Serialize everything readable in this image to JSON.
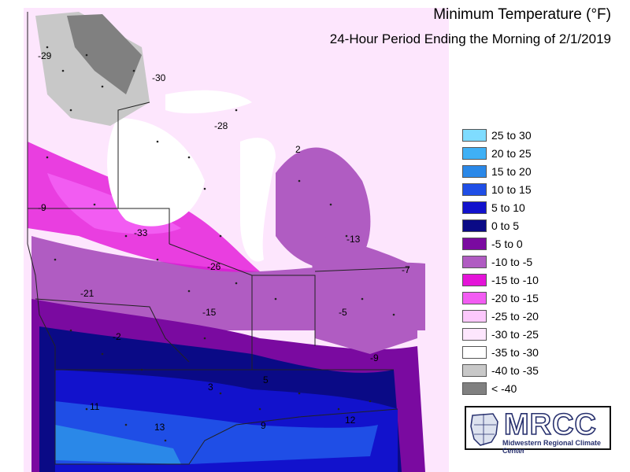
{
  "header": {
    "title": "Minimum Temperature (°F)",
    "subtitle": "24-Hour Period Ending the Morning of 2/1/2019"
  },
  "legend": [
    {
      "label": "25 to 30",
      "color": "#7fdcff"
    },
    {
      "label": "20 to 25",
      "color": "#3fb0f5"
    },
    {
      "label": "15 to 20",
      "color": "#2a88e8"
    },
    {
      "label": "10 to 15",
      "color": "#1f4ee6"
    },
    {
      "label": "5 to 10",
      "color": "#1212cc"
    },
    {
      "label": "0 to 5",
      "color": "#0a0a86"
    },
    {
      "label": "-5 to 0",
      "color": "#7a0aa0"
    },
    {
      "label": "-10 to -5",
      "color": "#b05cc2"
    },
    {
      "label": "-15 to -10",
      "color": "#e414d8"
    },
    {
      "label": "-20 to -15",
      "color": "#f25cf2"
    },
    {
      "label": "-25 to -20",
      "color": "#fcc8fc"
    },
    {
      "label": "-30 to -25",
      "color": "#fde6fd"
    },
    {
      "label": "-35 to -30",
      "color": "#ffffff"
    },
    {
      "label": "-40 to -35",
      "color": "#c8c8c8"
    },
    {
      "label": "< -40",
      "color": "#808080"
    }
  ],
  "map_labels": [
    "-29",
    "-30",
    "-28",
    "2",
    "-9",
    "-33",
    "-13",
    "-26",
    "-7",
    "-21",
    "-15",
    "-5",
    "-2",
    "-9",
    "3",
    "5",
    "11",
    "13",
    "9",
    "12"
  ],
  "logo": {
    "name": "MRCC",
    "tagline": "Midwestern Regional Climate Center"
  }
}
